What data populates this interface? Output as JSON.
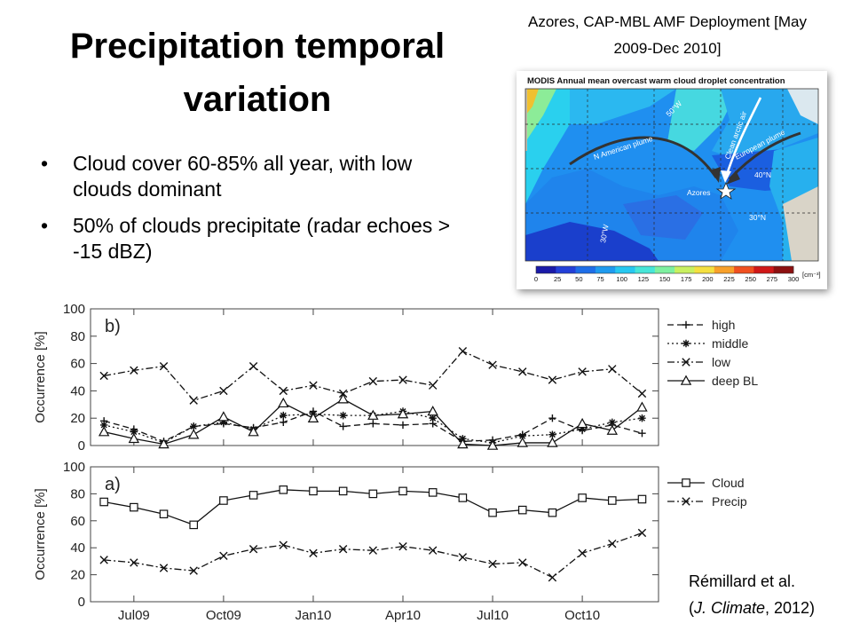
{
  "slide": {
    "title": "Precipitation temporal variation",
    "bullets": [
      {
        "text": "Cloud cover 60-85% all year, with low clouds dominant"
      },
      {
        "text": "50% of clouds precipitate (radar echoes > -15 dBZ)"
      }
    ],
    "map_caption": "Azores, CAP-MBL AMF Deployment [May 2009-Dec 2010]",
    "citation": {
      "author": "Rémillard et al.",
      "open": "(",
      "journal": "J. Climate",
      "rest": ", 2012)"
    }
  },
  "map": {
    "title": "MODIS Annual mean overcast warm cloud droplet concentration",
    "labels": {
      "lon50": "50°W",
      "lon30": "30°W",
      "lat40": "40°N",
      "lat30": "30°N",
      "n_american": "N American plume",
      "european": "European plume",
      "arctic": "Clean arctic air",
      "azores": "Azores"
    },
    "colorbar_ticks": [
      "0",
      "25",
      "50",
      "75",
      "100",
      "125",
      "150",
      "175",
      "200",
      "225",
      "250",
      "275",
      "300"
    ],
    "colorbar_unit": "[cm⁻³]",
    "colorbar_colors": [
      "#1a1aa8",
      "#2340d8",
      "#1e6ee8",
      "#1f9bef",
      "#27c8f0",
      "#47e6d8",
      "#7ef0a0",
      "#c8f060",
      "#f4e040",
      "#f8a02a",
      "#f05020",
      "#d01818",
      "#8c1010"
    ]
  },
  "chart_data": [
    {
      "type": "line",
      "panel": "b)",
      "ylabel": "Occurrence [%]",
      "ylim": [
        0,
        100
      ],
      "yticks": [
        0,
        20,
        40,
        60,
        80,
        100
      ],
      "x": [
        "2009-06",
        "2009-07",
        "2009-08",
        "2009-09",
        "2009-10",
        "2009-11",
        "2009-12",
        "2010-01",
        "2010-02",
        "2010-03",
        "2010-04",
        "2010-05",
        "2010-06",
        "2010-07",
        "2010-08",
        "2010-09",
        "2010-10",
        "2010-11",
        "2010-12"
      ],
      "xticks": [
        "Jul09",
        "Oct09",
        "Jan10",
        "Apr10",
        "Jul10",
        "Oct10"
      ],
      "legend": "right",
      "series": [
        {
          "name": "high",
          "style": "dash",
          "marker": "plus",
          "values": [
            18,
            12,
            3,
            14,
            16,
            13,
            17,
            25,
            14,
            16,
            15,
            16,
            3,
            4,
            8,
            20,
            11,
            15,
            9
          ]
        },
        {
          "name": "middle",
          "style": "dot",
          "marker": "star",
          "values": [
            15,
            10,
            2,
            14,
            17,
            12,
            22,
            23,
            22,
            22,
            25,
            20,
            5,
            2,
            7,
            8,
            12,
            17,
            20
          ]
        },
        {
          "name": "low",
          "style": "dashdot",
          "marker": "x",
          "values": [
            51,
            55,
            58,
            33,
            40,
            58,
            40,
            44,
            38,
            47,
            48,
            44,
            69,
            59,
            54,
            48,
            54,
            56,
            38
          ]
        },
        {
          "name": "deep BL",
          "style": "solid",
          "marker": "triangle",
          "values": [
            10,
            5,
            1,
            8,
            21,
            10,
            31,
            20,
            34,
            22,
            23,
            25,
            1,
            0,
            2,
            2,
            16,
            11,
            28
          ]
        }
      ]
    },
    {
      "type": "line",
      "panel": "a)",
      "ylabel": "Occurrence [%]",
      "ylim": [
        0,
        100
      ],
      "yticks": [
        0,
        20,
        40,
        60,
        80,
        100
      ],
      "x": [
        "2009-06",
        "2009-07",
        "2009-08",
        "2009-09",
        "2009-10",
        "2009-11",
        "2009-12",
        "2010-01",
        "2010-02",
        "2010-03",
        "2010-04",
        "2010-05",
        "2010-06",
        "2010-07",
        "2010-08",
        "2010-09",
        "2010-10",
        "2010-11",
        "2010-12"
      ],
      "xticks": [
        "Jul09",
        "Oct09",
        "Jan10",
        "Apr10",
        "Jul10",
        "Oct10"
      ],
      "legend": "right",
      "series": [
        {
          "name": "Cloud",
          "style": "solid",
          "marker": "square",
          "values": [
            74,
            70,
            65,
            57,
            75,
            79,
            83,
            82,
            82,
            80,
            82,
            81,
            77,
            66,
            68,
            66,
            77,
            75,
            76
          ]
        },
        {
          "name": "Precip",
          "style": "dashdot",
          "marker": "x",
          "values": [
            31,
            29,
            25,
            23,
            34,
            39,
            42,
            36,
            39,
            38,
            41,
            38,
            33,
            28,
            29,
            18,
            36,
            43,
            51
          ]
        }
      ]
    }
  ]
}
